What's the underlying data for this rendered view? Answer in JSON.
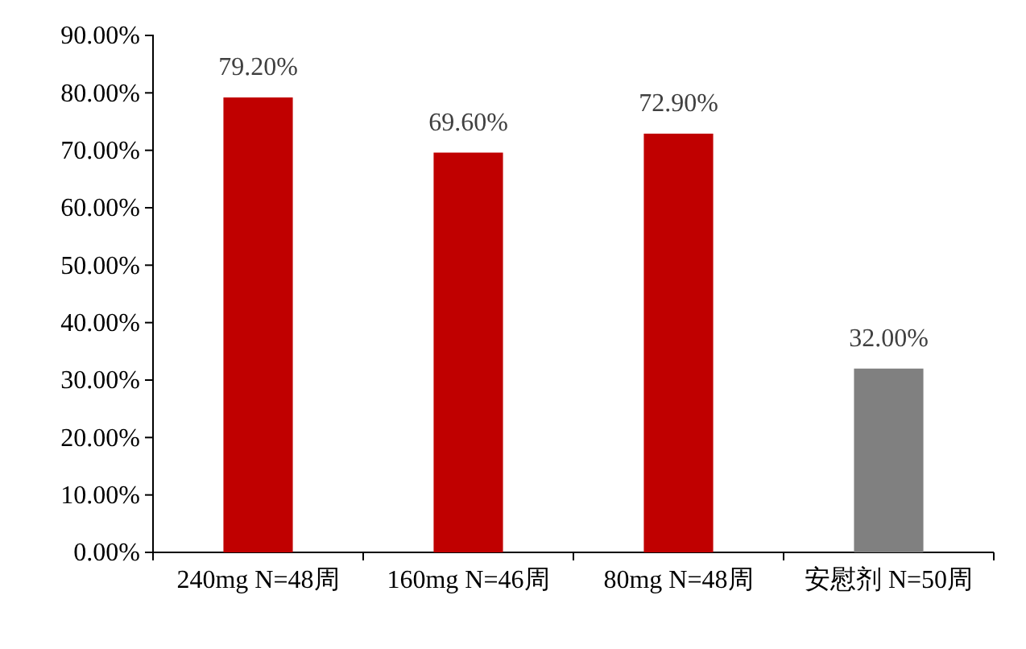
{
  "chart_data": {
    "type": "bar",
    "categories": [
      "240mg N=48周",
      "160mg N=46周",
      "80mg N=48周",
      "安慰剂 N=50周"
    ],
    "values": [
      79.2,
      69.6,
      72.9,
      32.0
    ],
    "colors": [
      "#c00000",
      "#c00000",
      "#c00000",
      "#808080"
    ],
    "value_labels": [
      "79.20%",
      "69.60%",
      "72.90%",
      "32.00%"
    ],
    "ylim": [
      0,
      90
    ],
    "yticks": [
      {
        "value": 0,
        "label": "0.00%"
      },
      {
        "value": 10,
        "label": "10.00%"
      },
      {
        "value": 20,
        "label": "20.00%"
      },
      {
        "value": 30,
        "label": "30.00%"
      },
      {
        "value": 40,
        "label": "40.00%"
      },
      {
        "value": 50,
        "label": "50.00%"
      },
      {
        "value": 60,
        "label": "60.00%"
      },
      {
        "value": 70,
        "label": "70.00%"
      },
      {
        "value": 80,
        "label": "80.00%"
      },
      {
        "value": 90,
        "label": "90.00%"
      }
    ],
    "grid": false
  }
}
